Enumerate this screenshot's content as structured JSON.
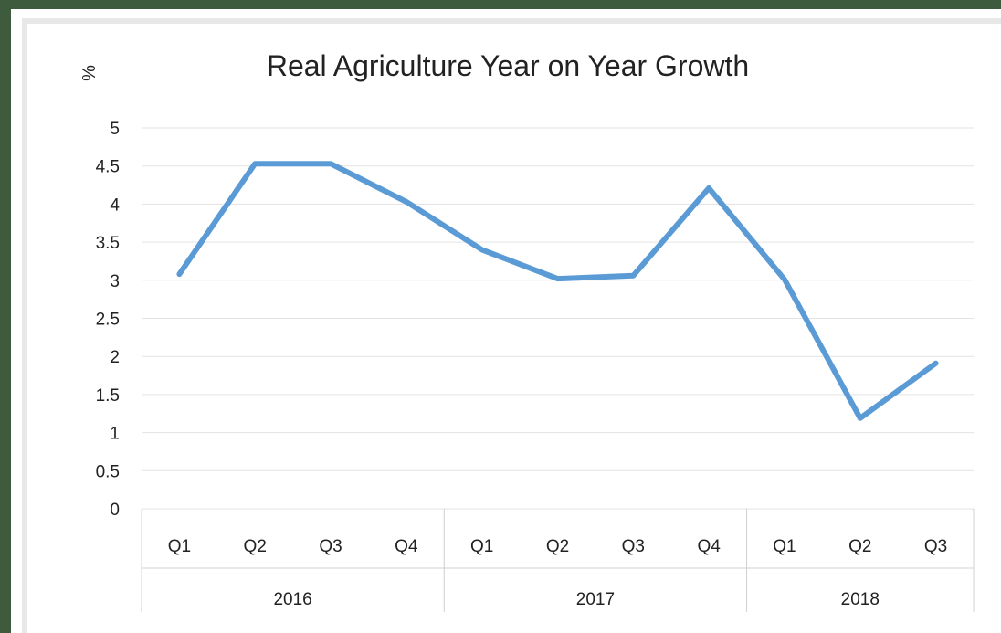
{
  "chart_data": {
    "type": "line",
    "title": "Real Agriculture Year on Year Growth",
    "ylabel": "%",
    "xlabel": "",
    "ylim": [
      0,
      5
    ],
    "yticks": [
      "0",
      "0.5",
      "1",
      "1.5",
      "2",
      "2.5",
      "3",
      "3.5",
      "4",
      "4.5",
      "5"
    ],
    "grid": true,
    "categories": [
      "Q1",
      "Q2",
      "Q3",
      "Q4",
      "Q1",
      "Q2",
      "Q3",
      "Q4",
      "Q1",
      "Q2",
      "Q3"
    ],
    "groups": [
      {
        "label": "2016",
        "count": 4
      },
      {
        "label": "2017",
        "count": 4
      },
      {
        "label": "2018",
        "count": 3
      }
    ],
    "series": [
      {
        "values": [
          3.08,
          4.53,
          4.53,
          4.03,
          3.4,
          3.02,
          3.06,
          4.21,
          3.01,
          1.19,
          1.91
        ],
        "color": "#5b9bd5"
      }
    ]
  }
}
